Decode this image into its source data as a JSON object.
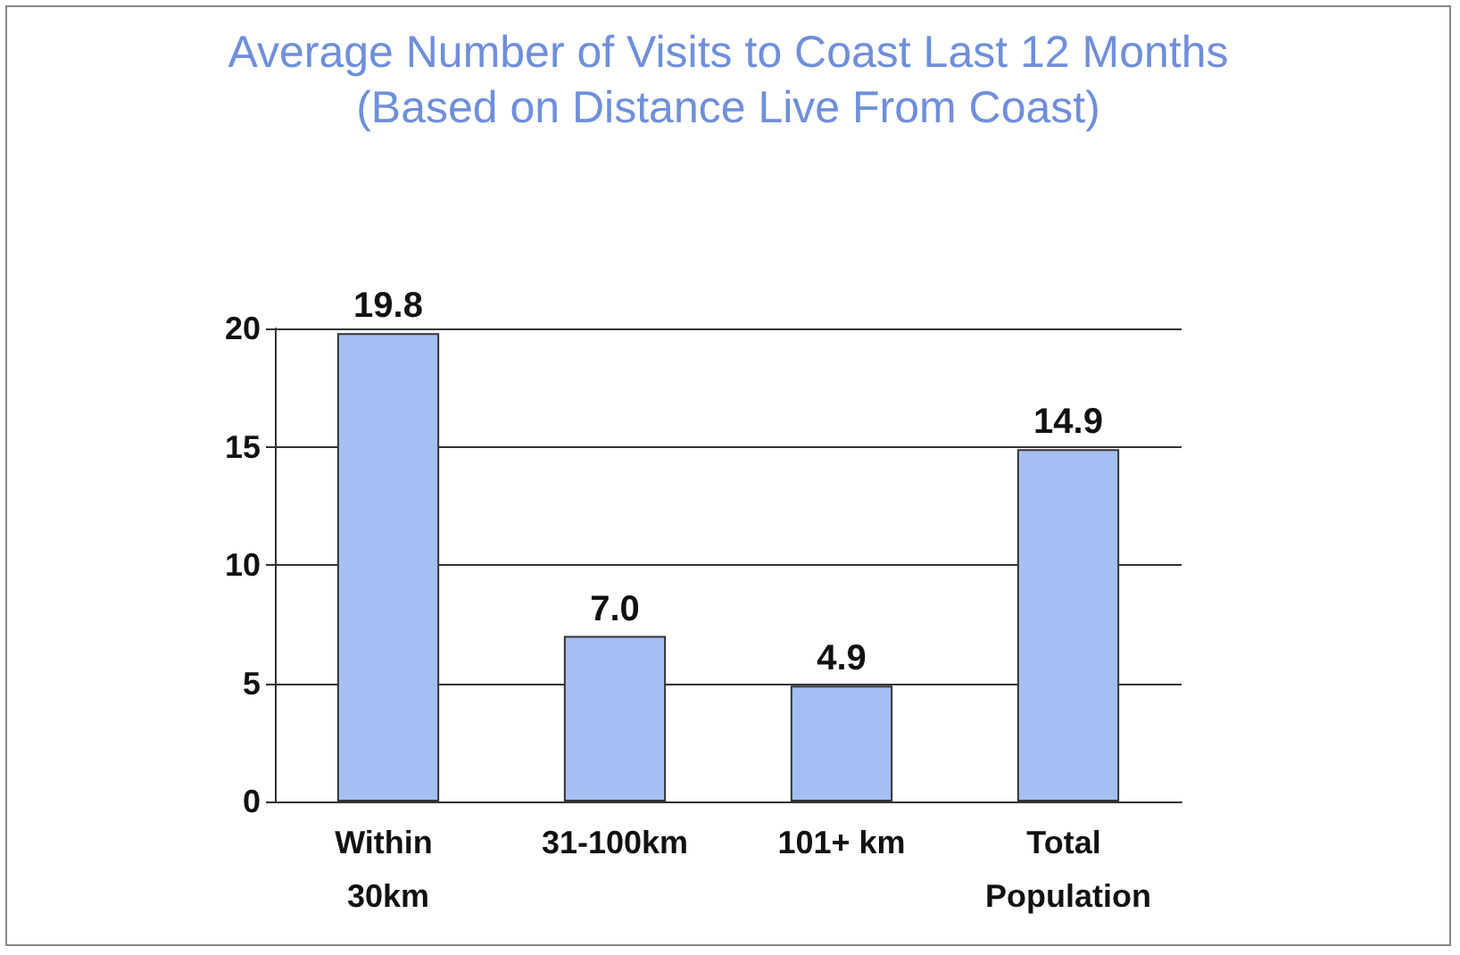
{
  "chart_data": {
    "type": "bar",
    "title": "Average Number of Visits to Coast Last 12 Months",
    "subtitle": "(Based on Distance Live From Coast)",
    "categories": [
      "Within 30km",
      "31-100km",
      "101+ km",
      "Total Population"
    ],
    "values": [
      19.8,
      7.0,
      4.9,
      14.9
    ],
    "value_labels": [
      "19.8",
      "7.0",
      "4.9",
      "14.9"
    ],
    "color": "#a6bff2",
    "ylim": [
      0,
      20
    ],
    "yticks": [
      0,
      5,
      10,
      15,
      20
    ],
    "grid": "y"
  }
}
